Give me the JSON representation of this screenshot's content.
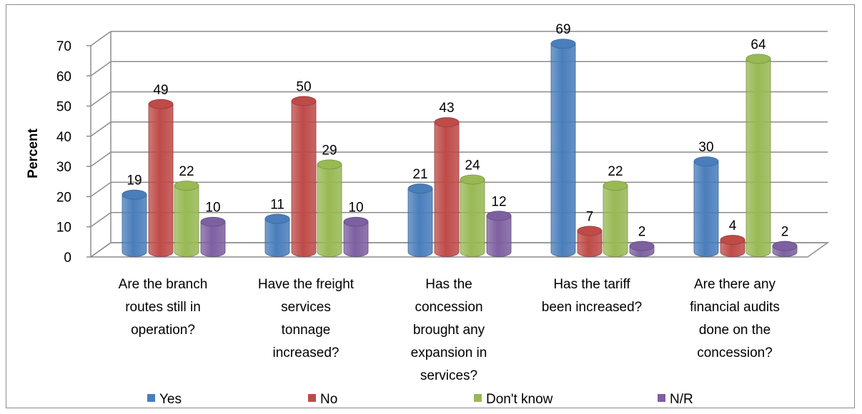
{
  "chart_data": {
    "type": "bar",
    "title": "",
    "xlabel": "",
    "ylabel": "Percent",
    "ylim": [
      0,
      70
    ],
    "yticks": [
      0,
      10,
      20,
      30,
      40,
      50,
      60,
      70
    ],
    "grid": true,
    "legend_position": "bottom",
    "categories": [
      [
        "Are the branch",
        "routes still in",
        "operation?"
      ],
      [
        "Have the freight",
        "services",
        "tonnage",
        "increased?"
      ],
      [
        "Has the",
        "concession",
        "brought any",
        "expansion in",
        "services?"
      ],
      [
        "Has the tariff",
        "been increased?"
      ],
      [
        "Are there any",
        "financial audits",
        "done on the",
        "concession?"
      ]
    ],
    "series": [
      {
        "name": "Yes",
        "color": "#4a7ebb",
        "values": [
          19,
          11,
          21,
          69,
          30
        ]
      },
      {
        "name": "No",
        "color": "#be4b48",
        "values": [
          49,
          50,
          43,
          7,
          4
        ]
      },
      {
        "name": "Don't know",
        "color": "#98b954",
        "values": [
          22,
          29,
          24,
          22,
          64
        ]
      },
      {
        "name": "N/R",
        "color": "#7d60a0",
        "values": [
          10,
          10,
          12,
          2,
          2
        ]
      }
    ]
  }
}
